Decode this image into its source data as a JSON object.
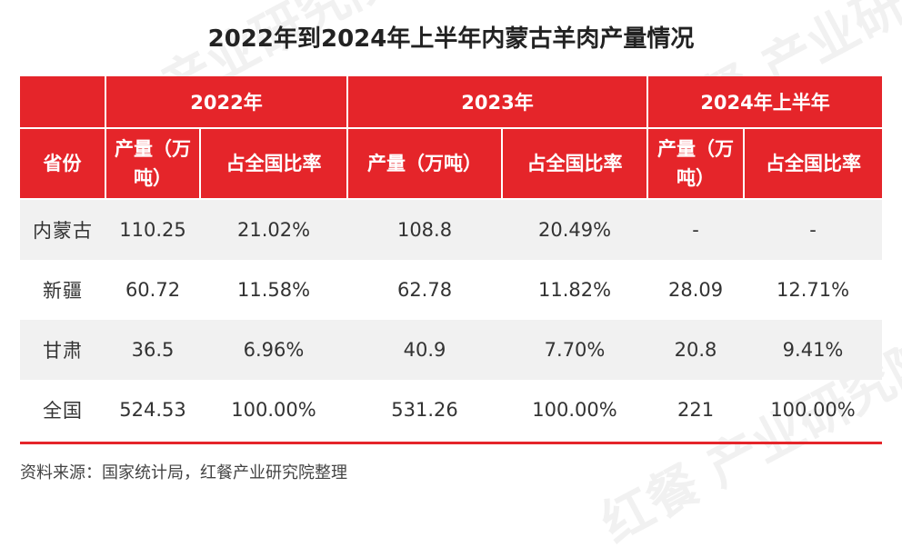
{
  "title": "2022年到2024年上半年内蒙古羊肉产量情况",
  "source": "资料来源：国家统计局，红餐产业研究院整理",
  "watermark": "红餐 产业研究院",
  "colors": {
    "header_bg": "#e5252a",
    "header_text": "#ffffff",
    "row_shade": "#f1f1f1"
  },
  "chart_data": {
    "type": "table",
    "title": "2022年到2024年上半年内蒙古羊肉产量情况",
    "group_headers": [
      "2022年",
      "2023年",
      "2024年上半年"
    ],
    "columns": [
      "省份",
      "产量（万吨）",
      "占全国比率",
      "产量（万吨）",
      "占全国比率",
      "产量（万吨）",
      "占全国比率"
    ],
    "rows": [
      [
        "内蒙古",
        "110.25",
        "21.02%",
        "108.8",
        "20.49%",
        "-",
        "-"
      ],
      [
        "新疆",
        "60.72",
        "11.58%",
        "62.78",
        "11.82%",
        "28.09",
        "12.71%"
      ],
      [
        "甘肃",
        "36.5",
        "6.96%",
        "40.9",
        "7.70%",
        "20.8",
        "9.41%"
      ],
      [
        "全国",
        "524.53",
        "100.00%",
        "531.26",
        "100.00%",
        "221",
        "100.00%"
      ]
    ]
  }
}
